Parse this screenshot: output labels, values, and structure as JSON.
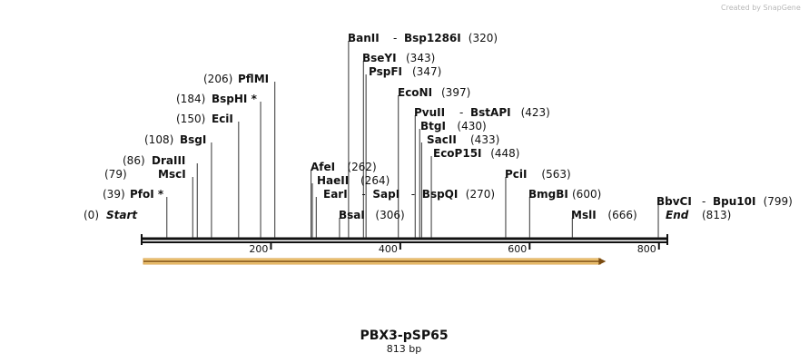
{
  "credit": "Created by SnapGene",
  "map": {
    "title": "PBX3-pSP65",
    "subtitle": "813 bp",
    "length": 813,
    "ticks": [
      200,
      400,
      600,
      800
    ],
    "start_label": {
      "name": "Start",
      "pos": "(0)"
    },
    "end_label": {
      "name": "End",
      "pos": "(813)"
    }
  },
  "feature": {
    "from": 0,
    "to": 718,
    "color": "#f0c87a",
    "edge": "#7a4b10"
  },
  "sites": [
    {
      "name": "PfoI *",
      "pos": 39
    },
    {
      "name": "MscI",
      "pos": 79
    },
    {
      "name": "DraIII",
      "pos": 86
    },
    {
      "name": "BsgI",
      "pos": 108
    },
    {
      "name": "EciI",
      "pos": 150
    },
    {
      "name": "BspHI *",
      "pos": 184
    },
    {
      "name": "PflMI",
      "pos": 206
    },
    {
      "name": "AfeI",
      "pos": 262
    },
    {
      "name": "HaeII",
      "pos": 264
    },
    {
      "name": "EarI",
      "pos": 270,
      "group": "EarI - SapI - BspQI"
    },
    {
      "name": "BsaI",
      "pos": 306
    },
    {
      "name": "BanII",
      "pos": 320,
      "group": "BanII - Bsp1286I"
    },
    {
      "name": "BseYI",
      "pos": 343
    },
    {
      "name": "PspFI",
      "pos": 347
    },
    {
      "name": "EcoNI",
      "pos": 397
    },
    {
      "name": "PvuII",
      "pos": 423,
      "group": "PvuII - BstAPI"
    },
    {
      "name": "BtgI",
      "pos": 430
    },
    {
      "name": "SacII",
      "pos": 433
    },
    {
      "name": "EcoP15I",
      "pos": 448
    },
    {
      "name": "PciI",
      "pos": 563
    },
    {
      "name": "BmgBI",
      "pos": 600
    },
    {
      "name": "MslI",
      "pos": 666
    },
    {
      "name": "BbvCI",
      "pos": 799,
      "group": "BbvCI - Bpu10I"
    }
  ],
  "labels": [
    {
      "id": "pfoi",
      "pos_text": "(39)",
      "names": [
        "PfoI *"
      ],
      "x": 39
    },
    {
      "id": "msci",
      "pos_text": "(79)",
      "names": [
        "MscI"
      ],
      "x": 79
    },
    {
      "id": "draiii",
      "pos_text": "(86)",
      "names": [
        "DraIII"
      ],
      "x": 86
    },
    {
      "id": "bsgi",
      "pos_text": "(108)",
      "names": [
        "BsgI"
      ],
      "x": 108
    },
    {
      "id": "ecii",
      "pos_text": "(150)",
      "names": [
        "EciI"
      ],
      "x": 150
    },
    {
      "id": "bsphi",
      "pos_text": "(184)",
      "names": [
        "BspHI *"
      ],
      "x": 184
    },
    {
      "id": "pflmi",
      "pos_text": "(206)",
      "names": [
        "PflMI"
      ],
      "x": 206
    },
    {
      "id": "afei",
      "pos_text": "(262)",
      "names": [
        "AfeI"
      ],
      "x": 262
    },
    {
      "id": "haeii",
      "pos_text": "(264)",
      "names": [
        "HaeII"
      ],
      "x": 264
    },
    {
      "id": "eari",
      "pos_text": "(270)",
      "names": [
        "EarI",
        "SapI",
        "BspQI"
      ],
      "x": 270
    },
    {
      "id": "bsai",
      "pos_text": "(306)",
      "names": [
        "BsaI"
      ],
      "x": 306
    },
    {
      "id": "banii",
      "pos_text": "(320)",
      "names": [
        "BanII",
        "Bsp1286I"
      ],
      "x": 320
    },
    {
      "id": "bseyi",
      "pos_text": "(343)",
      "names": [
        "BseYI"
      ],
      "x": 343
    },
    {
      "id": "pspfi",
      "pos_text": "(347)",
      "names": [
        "PspFI"
      ],
      "x": 347
    },
    {
      "id": "econi",
      "pos_text": "(397)",
      "names": [
        "EcoNI"
      ],
      "x": 397
    },
    {
      "id": "pvuii",
      "pos_text": "(423)",
      "names": [
        "PvuII",
        "BstAPI"
      ],
      "x": 423
    },
    {
      "id": "btgi",
      "pos_text": "(430)",
      "names": [
        "BtgI"
      ],
      "x": 430
    },
    {
      "id": "sacii",
      "pos_text": "(433)",
      "names": [
        "SacII"
      ],
      "x": 433
    },
    {
      "id": "ecop15i",
      "pos_text": "(448)",
      "names": [
        "EcoP15I"
      ],
      "x": 448
    },
    {
      "id": "pcii",
      "pos_text": "(563)",
      "names": [
        "PciI"
      ],
      "x": 563
    },
    {
      "id": "bmgbi",
      "pos_text": "(600)",
      "names": [
        "BmgBI"
      ],
      "x": 600
    },
    {
      "id": "msli",
      "pos_text": "(666)",
      "names": [
        "MslI"
      ],
      "x": 666
    },
    {
      "id": "bbvci",
      "pos_text": "(799)",
      "names": [
        "BbvCI",
        "Bpu10I"
      ],
      "x": 799
    }
  ]
}
